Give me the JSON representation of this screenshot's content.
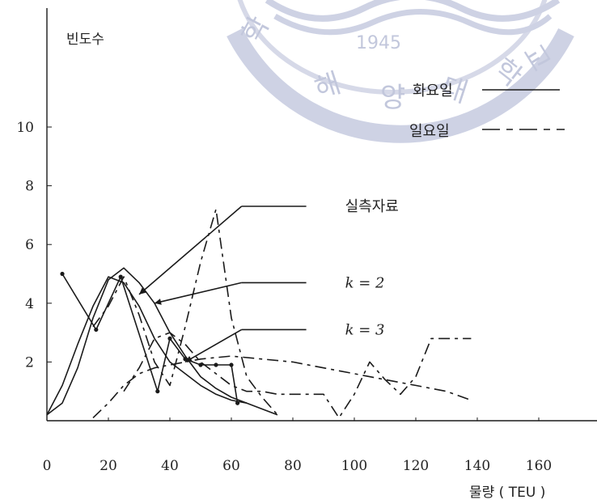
{
  "chart_data": {
    "type": "line",
    "title": "",
    "ylabel": "빈도수",
    "xlabel": "물량 ( TEU )",
    "xlim": [
      0,
      180
    ],
    "ylim": [
      0,
      12
    ],
    "x_ticks": [
      0,
      20,
      40,
      60,
      80,
      100,
      120,
      140,
      160
    ],
    "y_ticks": [
      2,
      4,
      6,
      8,
      10
    ],
    "grid": false,
    "legend": {
      "placement": "top-right",
      "entries": [
        {
          "label": "화요일",
          "style": "solid"
        },
        {
          "label": "일요일",
          "style": "dashed"
        }
      ]
    },
    "series": [
      {
        "style": "solid",
        "x": [
          0,
          5,
          10,
          15,
          20,
          25,
          30,
          35,
          40,
          45,
          50,
          55,
          60,
          65,
          70,
          75
        ],
        "y": [
          0.2,
          0.6,
          1.8,
          3.5,
          4.8,
          5.2,
          4.7,
          4.0,
          3.0,
          2.2,
          1.5,
          1.1,
          0.8,
          0.6,
          0.4,
          0.2
        ]
      },
      {
        "style": "solid",
        "x": [
          0,
          5,
          10,
          15,
          20,
          25,
          30,
          35,
          40,
          45,
          50,
          55,
          60,
          65
        ],
        "y": [
          0.2,
          1.2,
          2.6,
          3.9,
          4.9,
          4.7,
          3.9,
          2.8,
          2.0,
          1.6,
          1.2,
          0.9,
          0.7,
          0.6
        ]
      },
      {
        "style": "solid",
        "x": [
          5,
          16,
          24,
          36,
          40,
          45,
          50,
          55,
          60,
          62
        ],
        "y": [
          5.0,
          3.1,
          4.9,
          1.0,
          2.8,
          2.1,
          1.9,
          1.9,
          1.9,
          0.6
        ]
      },
      {
        "style": "dashed",
        "x": [
          15,
          20,
          25,
          30,
          35,
          40,
          50,
          60,
          70,
          80,
          90,
          100,
          110,
          120,
          130,
          138
        ],
        "y": [
          0.1,
          0.6,
          1.2,
          1.6,
          1.8,
          1.9,
          2.1,
          2.2,
          2.1,
          2.0,
          1.8,
          1.6,
          1.4,
          1.2,
          1.0,
          0.7
        ]
      },
      {
        "style": "dashed",
        "x": [
          25,
          30,
          35,
          40,
          45,
          50,
          55,
          60,
          65,
          70,
          75,
          80,
          85,
          90,
          95,
          100,
          105,
          110,
          115,
          120,
          125,
          130,
          138
        ],
        "y": [
          1.0,
          1.8,
          2.8,
          3.0,
          2.6,
          2.0,
          1.6,
          1.2,
          1.0,
          1.0,
          0.9,
          0.9,
          0.9,
          0.9,
          0.1,
          0.9,
          2.0,
          1.4,
          0.9,
          1.5,
          2.8,
          2.8,
          2.8
        ]
      },
      {
        "style": "dashed",
        "x": [
          15,
          20,
          25,
          30,
          35,
          40,
          45,
          50,
          55,
          60,
          65,
          70,
          75
        ],
        "y": [
          3.2,
          3.9,
          4.9,
          3.6,
          2.0,
          1.2,
          3.2,
          5.4,
          7.2,
          3.5,
          1.5,
          0.8,
          0.2
        ]
      }
    ],
    "annotations": [
      {
        "text": "실측자료",
        "italic": false,
        "at": [
          62,
          7.3
        ],
        "points_to": [
          30,
          4.3
        ]
      },
      {
        "text": "k = 2",
        "italic": true,
        "at": [
          62,
          4.7
        ],
        "points_to": [
          35,
          4.0
        ]
      },
      {
        "text": "k = 3",
        "italic": true,
        "at": [
          62,
          3.1
        ],
        "points_to": [
          45,
          2.0
        ]
      }
    ]
  },
  "watermark": {
    "year": "1945",
    "chars": [
      "학",
      "교",
      "해",
      "양",
      "대",
      "학"
    ],
    "color": "#b8bed6"
  }
}
